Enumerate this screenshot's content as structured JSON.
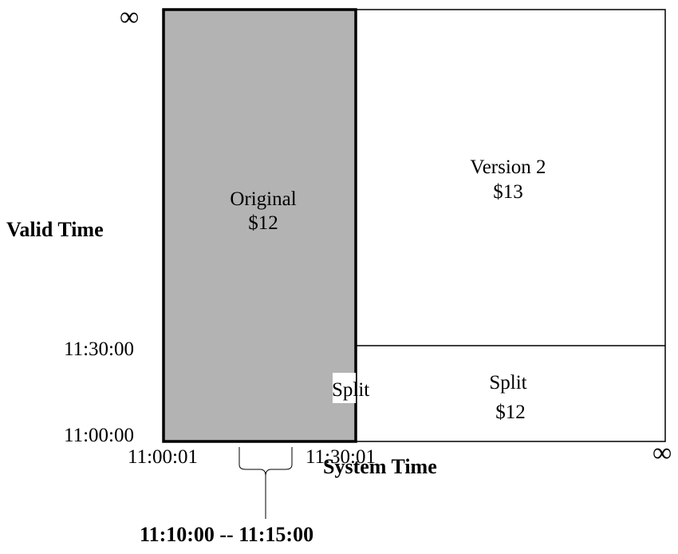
{
  "diagram": {
    "infinity_top": "∞",
    "infinity_right": "∞",
    "y_axis_label": "Valid Time",
    "x_axis_label": "System Time",
    "y_ticks": [
      "11:30:00",
      "11:00:00"
    ],
    "x_ticks": [
      "11:00:01",
      "11:30:01"
    ],
    "original_region": {
      "name": "Original",
      "price": "$12",
      "fill": "#b3b3b3"
    },
    "version2_region": {
      "name": "Version 2",
      "price": "$13"
    },
    "split_region": {
      "name": "Split",
      "price": "$12"
    },
    "split_tag": "Split",
    "brace_range": "11:10:00 -- 11:15:00"
  }
}
